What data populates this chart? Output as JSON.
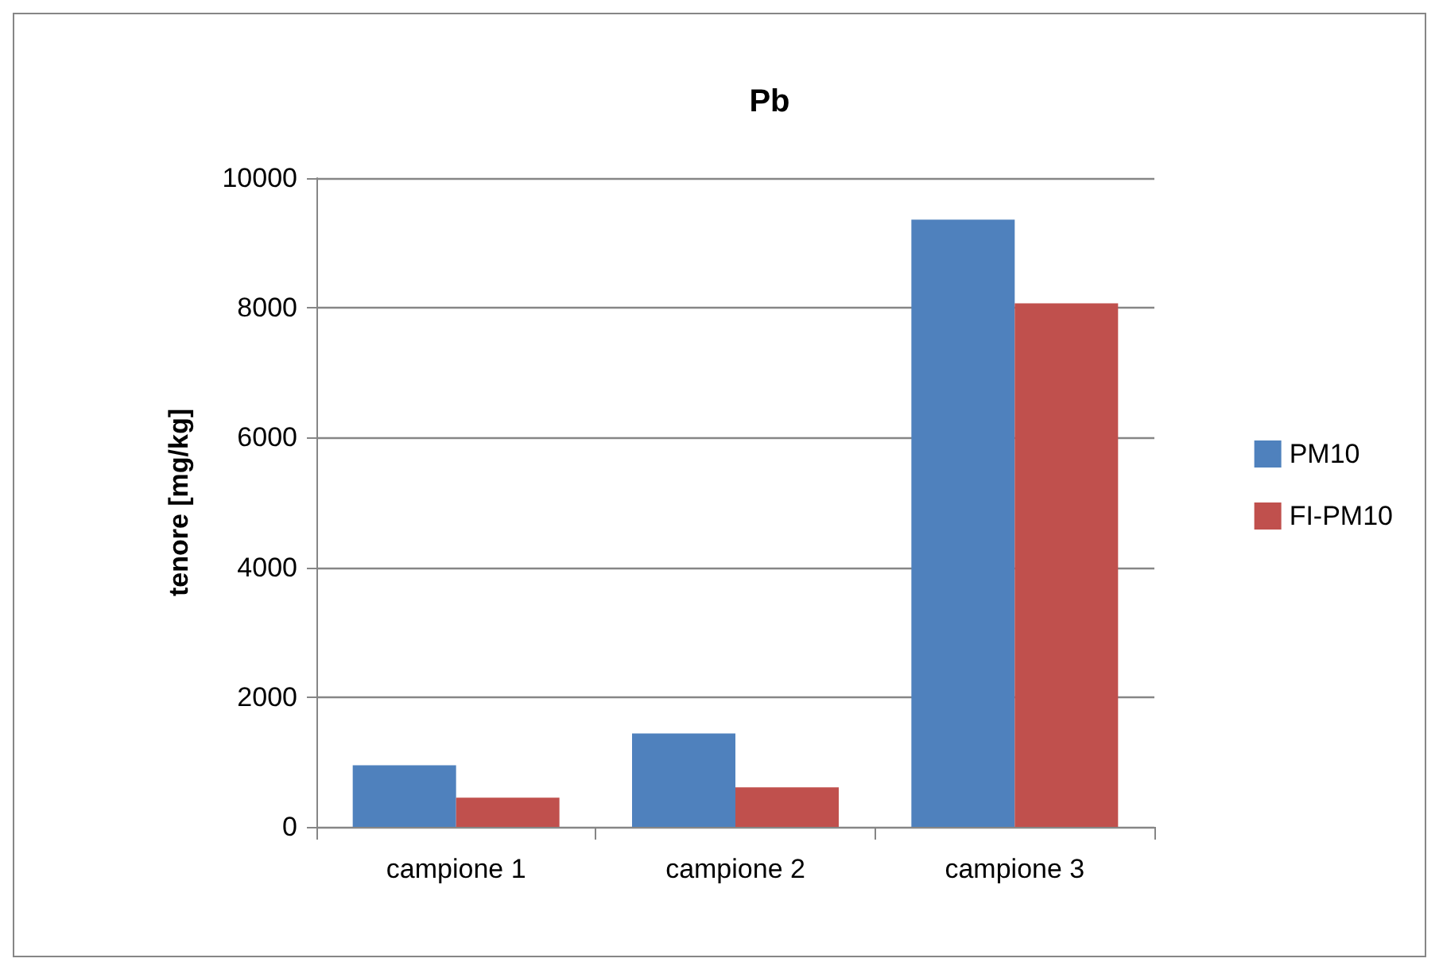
{
  "chart_data": {
    "type": "bar",
    "title": "Pb",
    "ylabel": "tenore [mg/kg]",
    "categories": [
      "campione 1",
      "campione 2",
      "campione 3"
    ],
    "series": [
      {
        "name": "PM10",
        "color": "#4f81bd",
        "values": [
          950,
          1440,
          9360
        ]
      },
      {
        "name": "FI-PM10",
        "color": "#c0504d",
        "values": [
          450,
          610,
          8070
        ]
      }
    ],
    "ylim": [
      0,
      10000
    ],
    "yticks": [
      0,
      2000,
      4000,
      6000,
      8000,
      10000
    ],
    "grid": "y",
    "legend": "right"
  }
}
